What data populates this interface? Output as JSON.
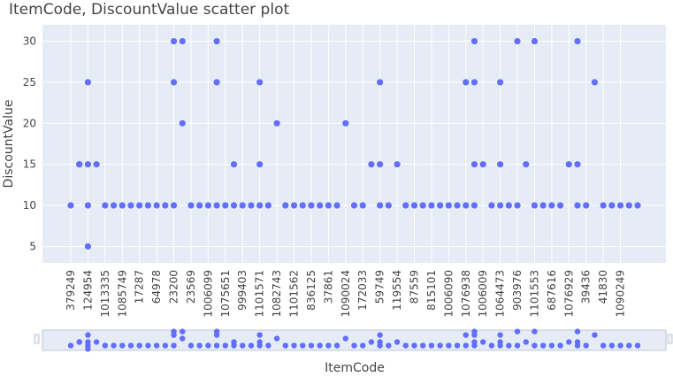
{
  "chart_data": {
    "type": "scatter",
    "title": "ItemCode, DiscountValue scatter plot",
    "xlabel": "ItemCode",
    "ylabel": "DiscountValue",
    "ylim": [
      3,
      32
    ],
    "yticks": [
      5,
      10,
      15,
      20,
      25,
      30
    ],
    "grid": true,
    "legend": "none",
    "rangeslider": true,
    "marker_color": "#636efa",
    "plot_bg": "#e5ecf6",
    "x_tick_labels": [
      "379249",
      "124954",
      "1013335",
      "1085749",
      "17287",
      "64978",
      "23200",
      "23569",
      "1006099",
      "1075651",
      "999403",
      "1101571",
      "1082743",
      "1101562",
      "836125",
      "37861",
      "1090024",
      "172033",
      "59749",
      "119554",
      "87559",
      "815101",
      "1006090",
      "1076938",
      "1006009",
      "1064473",
      "903976",
      "1101553",
      "687616",
      "1076929",
      "39436",
      "41830",
      "1090249"
    ],
    "points": [
      {
        "x": 0,
        "y": 10
      },
      {
        "x": 1,
        "y": 15
      },
      {
        "x": 1,
        "y": 15
      },
      {
        "x": 2,
        "y": 15
      },
      {
        "x": 2,
        "y": 25
      },
      {
        "x": 2,
        "y": 10
      },
      {
        "x": 2,
        "y": 5
      },
      {
        "x": 3,
        "y": 15
      },
      {
        "x": 4,
        "y": 10
      },
      {
        "x": 5,
        "y": 10
      },
      {
        "x": 6,
        "y": 10
      },
      {
        "x": 7,
        "y": 10
      },
      {
        "x": 8,
        "y": 10
      },
      {
        "x": 9,
        "y": 10
      },
      {
        "x": 10,
        "y": 10
      },
      {
        "x": 11,
        "y": 10
      },
      {
        "x": 12,
        "y": 10
      },
      {
        "x": 12,
        "y": 25
      },
      {
        "x": 12,
        "y": 30
      },
      {
        "x": 13,
        "y": 30
      },
      {
        "x": 13,
        "y": 20
      },
      {
        "x": 14,
        "y": 10
      },
      {
        "x": 15,
        "y": 10
      },
      {
        "x": 16,
        "y": 10
      },
      {
        "x": 17,
        "y": 10
      },
      {
        "x": 17,
        "y": 30
      },
      {
        "x": 17,
        "y": 25
      },
      {
        "x": 18,
        "y": 10
      },
      {
        "x": 19,
        "y": 10
      },
      {
        "x": 19,
        "y": 15
      },
      {
        "x": 20,
        "y": 10
      },
      {
        "x": 21,
        "y": 10
      },
      {
        "x": 22,
        "y": 10
      },
      {
        "x": 22,
        "y": 25
      },
      {
        "x": 22,
        "y": 15
      },
      {
        "x": 23,
        "y": 10
      },
      {
        "x": 24,
        "y": 20
      },
      {
        "x": 25,
        "y": 10
      },
      {
        "x": 26,
        "y": 10
      },
      {
        "x": 27,
        "y": 10
      },
      {
        "x": 28,
        "y": 10
      },
      {
        "x": 29,
        "y": 10
      },
      {
        "x": 30,
        "y": 10
      },
      {
        "x": 31,
        "y": 10
      },
      {
        "x": 32,
        "y": 20
      },
      {
        "x": 33,
        "y": 10
      },
      {
        "x": 34,
        "y": 10
      },
      {
        "x": 35,
        "y": 15
      },
      {
        "x": 36,
        "y": 15
      },
      {
        "x": 36,
        "y": 25
      },
      {
        "x": 36,
        "y": 10
      },
      {
        "x": 37,
        "y": 10
      },
      {
        "x": 38,
        "y": 15
      },
      {
        "x": 39,
        "y": 10
      },
      {
        "x": 40,
        "y": 10
      },
      {
        "x": 41,
        "y": 10
      },
      {
        "x": 42,
        "y": 10
      },
      {
        "x": 43,
        "y": 10
      },
      {
        "x": 44,
        "y": 10
      },
      {
        "x": 45,
        "y": 10
      },
      {
        "x": 46,
        "y": 10
      },
      {
        "x": 46,
        "y": 25
      },
      {
        "x": 47,
        "y": 10
      },
      {
        "x": 47,
        "y": 15
      },
      {
        "x": 47,
        "y": 25
      },
      {
        "x": 47,
        "y": 30
      },
      {
        "x": 48,
        "y": 15
      },
      {
        "x": 49,
        "y": 10
      },
      {
        "x": 50,
        "y": 10
      },
      {
        "x": 50,
        "y": 15
      },
      {
        "x": 50,
        "y": 25
      },
      {
        "x": 51,
        "y": 10
      },
      {
        "x": 52,
        "y": 10
      },
      {
        "x": 52,
        "y": 30
      },
      {
        "x": 53,
        "y": 15
      },
      {
        "x": 54,
        "y": 30
      },
      {
        "x": 54,
        "y": 10
      },
      {
        "x": 55,
        "y": 10
      },
      {
        "x": 56,
        "y": 10
      },
      {
        "x": 57,
        "y": 10
      },
      {
        "x": 58,
        "y": 15
      },
      {
        "x": 59,
        "y": 15
      },
      {
        "x": 59,
        "y": 10
      },
      {
        "x": 59,
        "y": 30
      },
      {
        "x": 60,
        "y": 10
      },
      {
        "x": 61,
        "y": 25
      },
      {
        "x": 62,
        "y": 10
      },
      {
        "x": 63,
        "y": 10
      },
      {
        "x": 64,
        "y": 10
      },
      {
        "x": 65,
        "y": 10
      },
      {
        "x": 66,
        "y": 10
      }
    ]
  }
}
